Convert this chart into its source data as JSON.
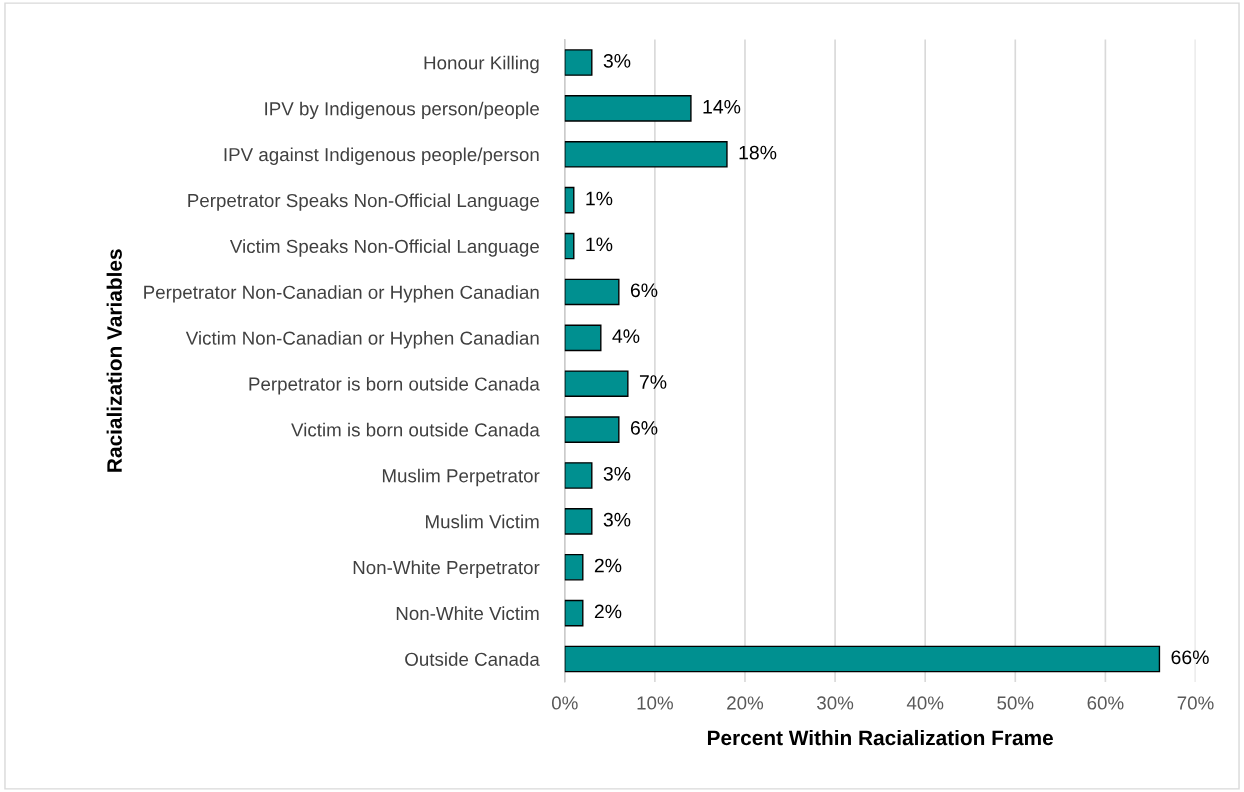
{
  "chart_data": {
    "type": "bar",
    "orientation": "horizontal",
    "xlabel": "Percent Within Racialization Frame",
    "ylabel": "Racialization Variables",
    "categories": [
      "Honour Killing",
      "IPV by Indigenous person/people",
      "IPV against Indigenous people/person",
      "Perpetrator Speaks Non-Official Language",
      "Victim Speaks Non-Official Language",
      "Perpetrator Non-Canadian or Hyphen Canadian",
      "Victim Non-Canadian or Hyphen Canadian",
      "Perpetrator is born outside Canada",
      "Victim is born outside Canada",
      "Muslim Perpetrator",
      "Muslim Victim",
      "Non-White Perpetrator",
      "Non-White Victim",
      "Outside Canada"
    ],
    "values": [
      3,
      14,
      18,
      1,
      1,
      6,
      4,
      7,
      6,
      3,
      3,
      2,
      2,
      66
    ],
    "value_labels": [
      "3%",
      "14%",
      "18%",
      "1%",
      "1%",
      "6%",
      "4%",
      "7%",
      "6%",
      "3%",
      "3%",
      "2%",
      "2%",
      "66%"
    ],
    "color": "#009090",
    "xlim": [
      0,
      70
    ],
    "xticks": [
      {
        "value": 0,
        "label": "0%"
      },
      {
        "value": 10,
        "label": "10%"
      },
      {
        "value": 20,
        "label": "20%"
      },
      {
        "value": 30,
        "label": "30%"
      },
      {
        "value": 40,
        "label": "40%"
      },
      {
        "value": 50,
        "label": "50%"
      },
      {
        "value": 60,
        "label": "60%"
      },
      {
        "value": 70,
        "label": "70%"
      }
    ],
    "grid": "x",
    "legend": false
  }
}
